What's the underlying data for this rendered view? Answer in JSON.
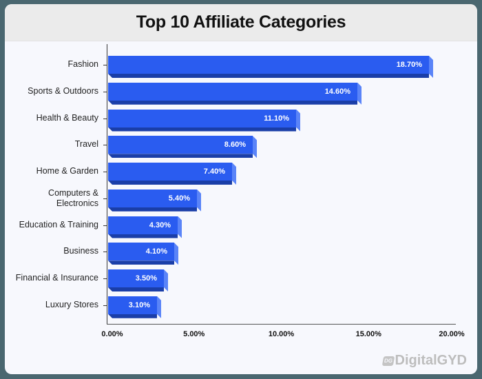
{
  "title": "Top 10 Affiliate Categories",
  "watermark": {
    "mark": "DG",
    "text": "DigitalGYD"
  },
  "colors": {
    "bar": "#2a5cf0",
    "bar_shadow": "#1a3ea8",
    "bar_side": "#5a84f8",
    "background": "#4a6770",
    "card": "#f7f8fd",
    "header": "#ebebeb"
  },
  "chart_data": {
    "type": "bar",
    "orientation": "horizontal",
    "title": "Top 10 Affiliate Categories",
    "xlabel": "",
    "ylabel": "",
    "categories": [
      "Fashion",
      "Sports & Outdoors",
      "Health & Beauty",
      "Travel",
      "Home & Garden",
      "Computers & Electronics",
      "Education & Training",
      "Business",
      "Financial & Insurance",
      "Luxury Stores"
    ],
    "values": [
      18.7,
      14.6,
      11.1,
      8.6,
      7.4,
      5.4,
      4.3,
      4.1,
      3.5,
      3.1
    ],
    "value_labels": [
      "18.70%",
      "14.60%",
      "11.10%",
      "8.60%",
      "7.40%",
      "5.40%",
      "4.30%",
      "4.10%",
      "3.50%",
      "3.10%"
    ],
    "xlim": [
      0,
      20
    ],
    "x_ticks": [
      "0.00%",
      "5.00%",
      "10.00%",
      "15.00%",
      "20.00%"
    ],
    "grid": false,
    "legend": null
  }
}
